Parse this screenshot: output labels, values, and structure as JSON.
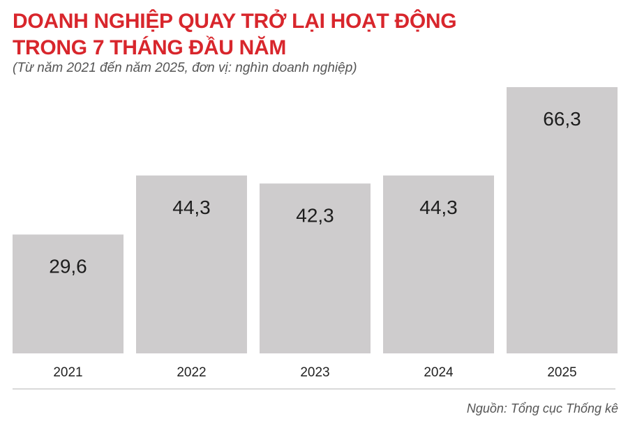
{
  "header": {
    "title_line1": "DOANH NGHIỆP QUAY TRỞ LẠI HOẠT ĐỘNG",
    "title_line2": "TRONG 7 THÁNG ĐẦU NĂM",
    "subtitle": "(Từ năm 2021 đến năm 2025, đơn vị: nghìn doanh nghiệp)"
  },
  "footer": {
    "source": "Nguồn: Tổng cục Thống kê"
  },
  "colors": {
    "title": "#d8262c",
    "bar": "#cecccd",
    "text": "#1d1d1d"
  },
  "chart_data": {
    "type": "bar",
    "title": "DOANH NGHIỆP QUAY TRỞ LẠI HOẠT ĐỘNG TRONG 7 THÁNG ĐẦU NĂM",
    "subtitle": "(Từ năm 2021 đến năm 2025, đơn vị: nghìn doanh nghiệp)",
    "categories": [
      "2021",
      "2022",
      "2023",
      "2024",
      "2025"
    ],
    "values": [
      29.6,
      44.3,
      42.3,
      44.3,
      66.3
    ],
    "value_labels": [
      "29,6",
      "44,3",
      "42,3",
      "44,3",
      "66,3"
    ],
    "xlabel": "",
    "ylabel": "",
    "ylim": [
      0,
      66.3
    ],
    "grid": false,
    "legend": "none"
  }
}
